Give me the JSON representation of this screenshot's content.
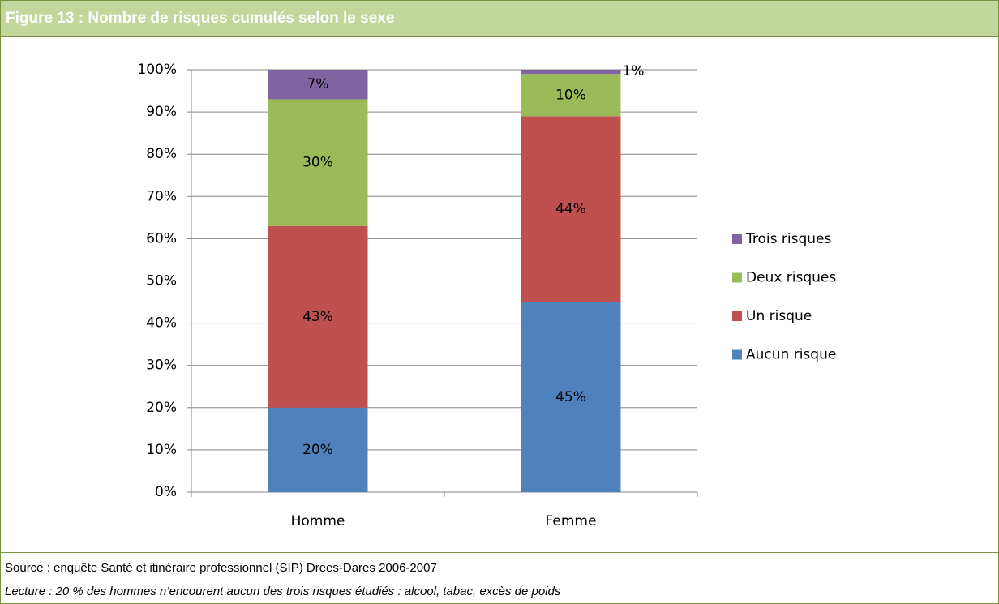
{
  "header": {
    "title": "Figure 13 : Nombre de risques cumulés selon le sexe"
  },
  "chart_data": {
    "type": "stacked_bar",
    "categories": [
      "Homme",
      "Femme"
    ],
    "series": [
      {
        "name": "Aucun risque",
        "color": "#4f81bd",
        "values": [
          20,
          45
        ],
        "value_labels": [
          "20%",
          "45%"
        ]
      },
      {
        "name": "Un risque",
        "color": "#c0504d",
        "values": [
          43,
          44
        ],
        "value_labels": [
          "43%",
          "44%"
        ]
      },
      {
        "name": "Deux risques",
        "color": "#9bbb59",
        "values": [
          30,
          10
        ],
        "value_labels": [
          "30%",
          "10%"
        ]
      },
      {
        "name": "Trois risques",
        "color": "#8064a2",
        "values": [
          7,
          1
        ],
        "value_labels": [
          "7%",
          "1%"
        ]
      }
    ],
    "ylim": [
      0,
      100
    ],
    "yticks": [
      {
        "value": 0,
        "label": "0%"
      },
      {
        "value": 10,
        "label": "10%"
      },
      {
        "value": 20,
        "label": "20%"
      },
      {
        "value": 30,
        "label": "30%"
      },
      {
        "value": 40,
        "label": "40%"
      },
      {
        "value": 50,
        "label": "50%"
      },
      {
        "value": 60,
        "label": "60%"
      },
      {
        "value": 70,
        "label": "70%"
      },
      {
        "value": 80,
        "label": "80%"
      },
      {
        "value": 90,
        "label": "90%"
      },
      {
        "value": 100,
        "label": "100%"
      }
    ],
    "grid": true,
    "legend": "right"
  },
  "footer": {
    "source": "Source : enquête Santé et itinéraire professionnel (SIP) Drees-Dares 2006-2007",
    "note": "Lecture : 20 % des hommes n’encourent aucun des trois risques étudiés : alcool, tabac, excès de poids"
  }
}
